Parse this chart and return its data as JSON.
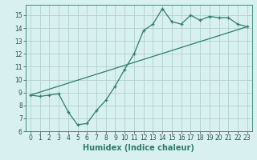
{
  "xlabel": "Humidex (Indice chaleur)",
  "line1_x": [
    0,
    1,
    2,
    3,
    4,
    5,
    6,
    7,
    8,
    9,
    10,
    11,
    12,
    13,
    14,
    15,
    16,
    17,
    18,
    19,
    20,
    21,
    22,
    23
  ],
  "line1_y": [
    8.8,
    8.7,
    8.8,
    8.9,
    7.5,
    6.5,
    6.6,
    7.6,
    8.4,
    9.5,
    10.8,
    12.0,
    13.8,
    14.3,
    15.5,
    14.5,
    14.3,
    15.0,
    14.6,
    14.9,
    14.8,
    14.8,
    14.3,
    14.1
  ],
  "line2_x": [
    0,
    23
  ],
  "line2_y": [
    8.8,
    14.1
  ],
  "line_color": "#2e7d6e",
  "bg_color": "#d8f0f0",
  "grid_color": "#b0d0d0",
  "xlim": [
    -0.5,
    23.5
  ],
  "ylim": [
    6,
    15.8
  ],
  "yticks": [
    6,
    7,
    8,
    9,
    10,
    11,
    12,
    13,
    14,
    15
  ],
  "xticks": [
    0,
    1,
    2,
    3,
    4,
    5,
    6,
    7,
    8,
    9,
    10,
    11,
    12,
    13,
    14,
    15,
    16,
    17,
    18,
    19,
    20,
    21,
    22,
    23
  ],
  "xlabel_fontsize": 7,
  "tick_fontsize": 5.5,
  "marker_size": 3
}
